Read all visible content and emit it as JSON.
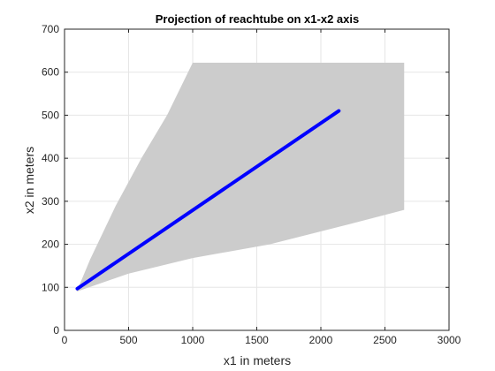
{
  "chart_data": {
    "type": "area",
    "title": "Projection of reachtube on x1-x2 axis",
    "xlabel": "x1 in meters",
    "ylabel": "x2 in meters",
    "xlim": [
      0,
      3000
    ],
    "ylim": [
      0,
      700
    ],
    "x_ticks": [
      0,
      500,
      1000,
      1500,
      2000,
      2500,
      3000
    ],
    "y_ticks": [
      0,
      100,
      200,
      300,
      400,
      500,
      600,
      700
    ],
    "grid": true,
    "colors": {
      "reachtube": "#cccccc",
      "trajectory": "#0000ff",
      "grid": "#e6e6e6",
      "axis": "#262626"
    },
    "series": [
      {
        "kind": "region",
        "points": [
          [
            95,
            90
          ],
          [
            200,
            165
          ],
          [
            400,
            290
          ],
          [
            600,
            400
          ],
          [
            800,
            500
          ],
          [
            1000,
            622
          ],
          [
            2650,
            622
          ],
          [
            2650,
            280
          ],
          [
            2200,
            245
          ],
          [
            1600,
            200
          ],
          [
            1000,
            168
          ],
          [
            500,
            132
          ],
          [
            95,
            90
          ]
        ]
      },
      {
        "kind": "line",
        "points": [
          [
            100,
            97
          ],
          [
            2140,
            510
          ]
        ]
      }
    ]
  }
}
